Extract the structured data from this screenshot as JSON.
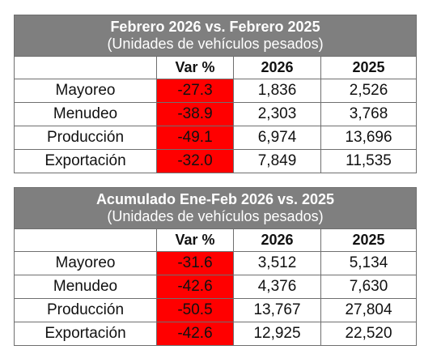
{
  "tables": [
    {
      "title": "Febrero 2026 vs. Febrero 2025",
      "subtitle": "(Unidades de vehículos pesados)",
      "headers": [
        "",
        "Var %",
        "2026",
        "2025"
      ],
      "rows": [
        {
          "label": "Mayoreo",
          "var": "-27.3",
          "y2026": "1,836",
          "y2025": "2,526"
        },
        {
          "label": "Menudeo",
          "var": "-38.9",
          "y2026": "2,303",
          "y2025": "3,768"
        },
        {
          "label": "Producción",
          "var": "-49.1",
          "y2026": "6,974",
          "y2025": "13,696"
        },
        {
          "label": "Exportación",
          "var": "-32.0",
          "y2026": "7,849",
          "y2025": "11,535"
        }
      ]
    },
    {
      "title": "Acumulado Ene-Feb 2026 vs. 2025",
      "subtitle": "(Unidades de vehículos pesados)",
      "headers": [
        "",
        "Var %",
        "2026",
        "2025"
      ],
      "rows": [
        {
          "label": "Mayoreo",
          "var": "-31.6",
          "y2026": "3,512",
          "y2025": "5,134"
        },
        {
          "label": "Menudeo",
          "var": "-42.6",
          "y2026": "4,376",
          "y2025": "7,630"
        },
        {
          "label": "Producción",
          "var": "-50.5",
          "y2026": "13,767",
          "y2025": "27,804"
        },
        {
          "label": "Exportación",
          "var": "-42.6",
          "y2026": "12,925",
          "y2025": "22,520"
        }
      ]
    }
  ],
  "colors": {
    "header_bg": "#7f7f7f",
    "negative_var_bg": "#ff0000",
    "border": "#6f6f6f"
  }
}
